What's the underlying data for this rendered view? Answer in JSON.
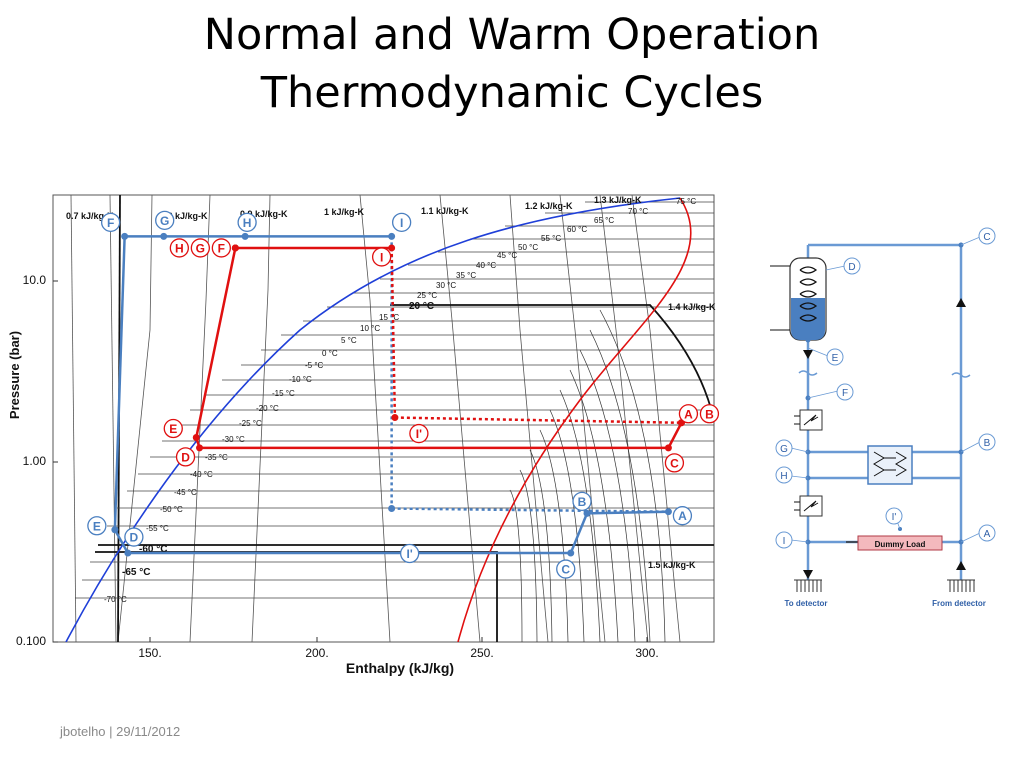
{
  "slide": {
    "title_line1": "Normal and Warm Operation",
    "title_line2": "Thermodynamic Cycles",
    "footer": "jbotelho | 29/11/2012"
  },
  "colors": {
    "normal_cycle": "#4a7fc0",
    "warm_cycle": "#e01010",
    "saturation_curve_liquid": "#1f3fd8",
    "saturation_curve_vapor": "#e01010",
    "circuit_pipe": "#6a9ad4",
    "dummy_load_fill": "#f4b9bd",
    "caption_blue": "#2f5fa7"
  },
  "chart_data": {
    "type": "line",
    "title": "",
    "xlabel": "Enthalpy (kJ/kg)",
    "ylabel": "Pressure (bar)",
    "xlim": [
      117,
      320
    ],
    "ylim": [
      0.1,
      25
    ],
    "y_scale": "log",
    "x_ticks": [
      {
        "value": 150,
        "label": "150."
      },
      {
        "value": 200,
        "label": "200."
      },
      {
        "value": 250,
        "label": "250."
      },
      {
        "value": 300,
        "label": "300."
      }
    ],
    "y_ticks": [
      {
        "value": 10,
        "label": "10.0"
      },
      {
        "value": 1,
        "label": "1.00"
      },
      {
        "value": 0.1,
        "label": "0.100"
      }
    ],
    "isotherm_labels": [
      "75 °C",
      "70 °C",
      "65 °C",
      "60 °C",
      "55 °C",
      "50 °C",
      "45 °C",
      "40 °C",
      "35 °C",
      "30 °C",
      "25 °C",
      "20 °C",
      "15 °C",
      "10 °C",
      "5 °C",
      "0 °C",
      "-5 °C",
      "-10 °C",
      "-15 °C",
      "-20 °C",
      "-25 °C",
      "-30 °C",
      "-35 °C",
      "-40 °C",
      "-45 °C",
      "-50 °C",
      "-55 °C",
      "-60 °C",
      "-65 °C",
      "-70 °C"
    ],
    "entropy_labels": [
      "0.7 kJ/kg-K",
      "0.8 kJ/kg-K",
      "0.9 kJ/kg-K",
      "1 kJ/kg-K",
      "1.1 kJ/kg-K",
      "1.2 kJ/kg-K",
      "1.3 kJ/kg-K",
      "1.4 kJ/kg-K",
      "1.5 kJ/kg-K"
    ],
    "series": [
      {
        "color": "#4a7fc0",
        "points": [
          {
            "label": "F",
            "x": 139,
            "y": 15
          },
          {
            "label": "G",
            "x": 151,
            "y": 15
          },
          {
            "label": "H",
            "x": 176,
            "y": 15
          },
          {
            "label": "I",
            "x": 221,
            "y": 15
          },
          {
            "label": "I'",
            "x": 221,
            "y": 0.52
          },
          {
            "label": "A",
            "x": 306,
            "y": 0.5
          },
          {
            "label": "B",
            "x": 281,
            "y": 0.49
          },
          {
            "label": "C",
            "x": 276,
            "y": 0.3
          },
          {
            "label": "D",
            "x": 140,
            "y": 0.3
          },
          {
            "label": "E",
            "x": 136,
            "y": 0.4
          }
        ]
      },
      {
        "color": "#e01010",
        "points": [
          {
            "label": "F",
            "x": 173,
            "y": 13
          },
          {
            "label": "G",
            "x": 173,
            "y": 13
          },
          {
            "label": "H",
            "x": 173,
            "y": 13
          },
          {
            "label": "I",
            "x": 221,
            "y": 13
          },
          {
            "label": "I'",
            "x": 222,
            "y": 1.6
          },
          {
            "label": "A",
            "x": 310,
            "y": 1.5
          },
          {
            "label": "B",
            "x": 310,
            "y": 1.5
          },
          {
            "label": "C",
            "x": 306,
            "y": 1.1
          },
          {
            "label": "D",
            "x": 162,
            "y": 1.1
          },
          {
            "label": "E",
            "x": 161,
            "y": 1.25
          }
        ]
      }
    ]
  },
  "circuit": {
    "node_labels": [
      "A",
      "B",
      "C",
      "D",
      "E",
      "F",
      "G",
      "H",
      "I",
      "I'"
    ],
    "dummy_load": "Dummy Load",
    "to_detector": "To detector",
    "from_detector": "From detector"
  }
}
